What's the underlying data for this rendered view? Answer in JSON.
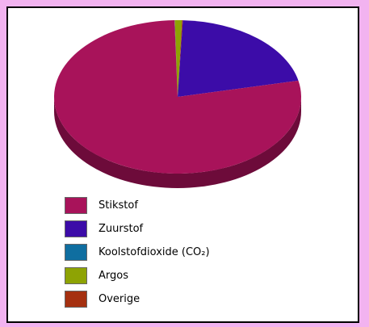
{
  "chart_data": {
    "type": "pie",
    "style": "3d",
    "series": [
      {
        "name": "Stikstof",
        "value": 78.08,
        "color": "#a8135a",
        "side": "#6d0b3a"
      },
      {
        "name": "Zuurstof",
        "value": 20.95,
        "color": "#3c0ca8",
        "side": "#26066f"
      },
      {
        "name": "Koolstofdioxide (CO₂)",
        "value": 0.04,
        "color": "#0f6ea0",
        "side": "#08496b"
      },
      {
        "name": "Argos",
        "value": 0.93,
        "color": "#8ea304",
        "side": "#5d6b02"
      },
      {
        "name": "Overige",
        "value": 0.1,
        "color": "#a53010",
        "side": "#6c1e08"
      }
    ],
    "legend_position": "bottom-left"
  },
  "colors": {
    "page_background": "#f2b3f0",
    "panel_background": "#ffffff",
    "panel_border": "#000000"
  }
}
